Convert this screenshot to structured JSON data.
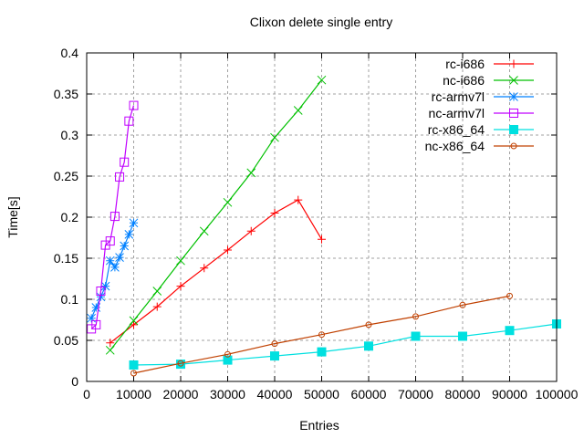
{
  "chart_data": {
    "type": "line",
    "title": "Clixon delete single entry",
    "xlabel": "Entries",
    "ylabel": "Time[s]",
    "xlim": [
      0,
      100000
    ],
    "ylim": [
      0,
      0.4
    ],
    "xticks": [
      0,
      10000,
      20000,
      30000,
      40000,
      50000,
      60000,
      70000,
      80000,
      90000,
      100000
    ],
    "yticks": [
      0,
      0.05,
      0.1,
      0.15,
      0.2,
      0.25,
      0.3,
      0.35,
      0.4
    ],
    "ytick_labels": [
      "0",
      "0.05",
      "0.1",
      "0.15",
      "0.2",
      "0.25",
      "0.3",
      "0.35",
      "0.4"
    ],
    "grid": true,
    "legend_position": "top-right",
    "series": [
      {
        "name": "rc-i686",
        "color": "#ff0000",
        "marker": "plus",
        "x": [
          5000,
          10000,
          15000,
          20000,
          25000,
          30000,
          35000,
          40000,
          45000,
          50000
        ],
        "y": [
          0.047,
          0.069,
          0.091,
          0.116,
          0.138,
          0.16,
          0.183,
          0.205,
          0.221,
          0.173
        ]
      },
      {
        "name": "nc-i686",
        "color": "#00c000",
        "marker": "cross",
        "x": [
          5000,
          10000,
          15000,
          20000,
          25000,
          30000,
          35000,
          40000,
          45000,
          50000
        ],
        "y": [
          0.038,
          0.074,
          0.11,
          0.147,
          0.183,
          0.218,
          0.254,
          0.297,
          0.33,
          0.367
        ]
      },
      {
        "name": "rc-armv7l",
        "color": "#0080ff",
        "marker": "star",
        "x": [
          1000,
          2000,
          3000,
          4000,
          5000,
          6000,
          7000,
          8000,
          9000,
          10000
        ],
        "y": [
          0.077,
          0.09,
          0.103,
          0.116,
          0.147,
          0.139,
          0.151,
          0.165,
          0.179,
          0.193
        ]
      },
      {
        "name": "nc-armv7l",
        "color": "#c000ff",
        "marker": "box",
        "x": [
          1000,
          2000,
          3000,
          4000,
          5000,
          6000,
          7000,
          8000,
          9000,
          10000
        ],
        "y": [
          0.064,
          0.069,
          0.11,
          0.166,
          0.171,
          0.201,
          0.249,
          0.267,
          0.317,
          0.336
        ]
      },
      {
        "name": "rc-x86_64",
        "color": "#00e0e0",
        "marker": "filledbox",
        "x": [
          10000,
          20000,
          30000,
          40000,
          50000,
          60000,
          70000,
          80000,
          90000,
          100000
        ],
        "y": [
          0.02,
          0.021,
          0.026,
          0.031,
          0.036,
          0.043,
          0.055,
          0.055,
          0.062,
          0.07
        ]
      },
      {
        "name": "nc-x86_64",
        "color": "#c04000",
        "marker": "circle",
        "x": [
          10000,
          20000,
          30000,
          40000,
          50000,
          60000,
          70000,
          80000,
          90000
        ],
        "y": [
          0.01,
          0.022,
          0.033,
          0.046,
          0.057,
          0.069,
          0.079,
          0.093,
          0.104
        ]
      }
    ]
  }
}
